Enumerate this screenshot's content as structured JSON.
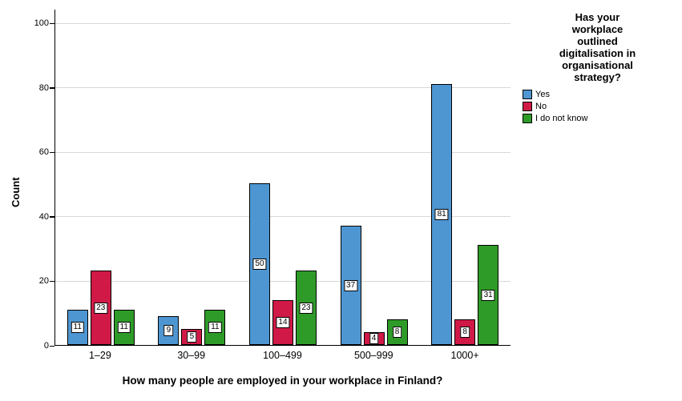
{
  "chart_data": {
    "type": "bar",
    "title": "",
    "categories": [
      "1–29",
      "30–99",
      "100–499",
      "500–999",
      "1000+"
    ],
    "series": [
      {
        "name": "Yes",
        "color": "#4E96D2",
        "values": [
          11,
          9,
          50,
          37,
          81
        ]
      },
      {
        "name": "No",
        "color": "#D01946",
        "values": [
          23,
          5,
          14,
          4,
          8
        ]
      },
      {
        "name": "I do not know",
        "color": "#2E9B28",
        "values": [
          11,
          11,
          23,
          8,
          31
        ]
      }
    ],
    "bar_labels": true,
    "xlabel": "How many people are employed in your workplace in Finland?",
    "ylabel": "Count",
    "ylim": [
      0,
      100
    ],
    "yticks": [
      0,
      20,
      40,
      60,
      80,
      100
    ],
    "grid": true,
    "legend_position": "right",
    "legend_title": "Has your workplace outlined digitalisation in organisational strategy?"
  }
}
